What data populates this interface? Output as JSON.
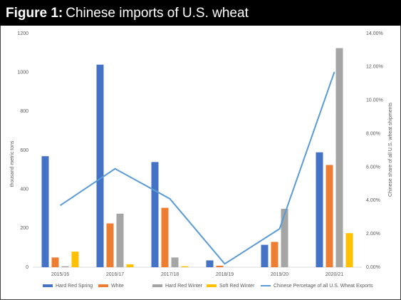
{
  "chart_data": {
    "type": "bar",
    "title_label": "Figure 1:",
    "title": "Chinese imports of U.S. wheat",
    "y_label": "thousand metric tons",
    "y2_label": "Chinese share of all U.S. wheat shipments",
    "categories": [
      "2015/16",
      "2016/17",
      "2017/18",
      "2018/19",
      "2019/20",
      "2020/21"
    ],
    "series": [
      {
        "name": "Hard Red Spring",
        "color": "#4472c4",
        "values": [
          570,
          1040,
          540,
          35,
          115,
          590
        ]
      },
      {
        "name": "White",
        "color": "#ed7d31",
        "values": [
          50,
          225,
          305,
          8,
          130,
          525
        ]
      },
      {
        "name": "Hard Red Winter",
        "color": "#a5a5a5",
        "values": [
          5,
          275,
          50,
          0,
          300,
          1125
        ]
      },
      {
        "name": "Soft Red Winter",
        "color": "#ffc000",
        "values": [
          80,
          15,
          5,
          0,
          0,
          175
        ]
      },
      {
        "name": "Chinese Percetage of all U.S. Wheat Exports",
        "color": "#5b9bd5",
        "type": "line",
        "axis": "y2",
        "values": [
          3.7,
          5.9,
          4.1,
          0.2,
          2.3,
          11.7
        ]
      }
    ],
    "ylim": [
      0,
      1200
    ],
    "yticks": [
      0,
      200,
      400,
      600,
      800,
      1000,
      1200
    ],
    "y2lim": [
      0,
      14
    ],
    "y2ticks": [
      {
        "value": 0,
        "label": "0.00%"
      },
      {
        "value": 2,
        "label": "2.00%"
      },
      {
        "value": 4,
        "label": "4.00%"
      },
      {
        "value": 6,
        "label": "6.00%"
      },
      {
        "value": 8,
        "label": "8.00%"
      },
      {
        "value": 10,
        "label": "10.00%"
      },
      {
        "value": 12,
        "label": "12.00%"
      },
      {
        "value": 14,
        "label": "14.00%"
      }
    ],
    "grid": false,
    "legend": "bottom"
  }
}
